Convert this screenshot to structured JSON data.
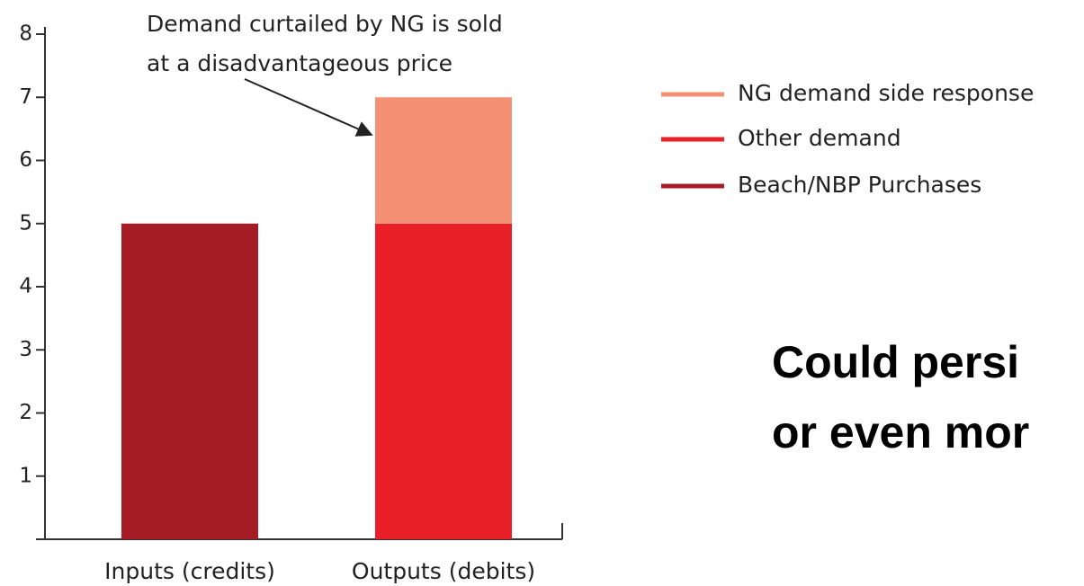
{
  "chart_data": {
    "type": "stacked_bar",
    "annotation": [
      "Demand curtailed by NG is sold",
      "at a disadvantageous price"
    ],
    "categories": [
      "Inputs (credits)",
      "Outputs (debits)"
    ],
    "series": [
      {
        "name": "Beach/NBP Purchases",
        "color": "#a51c24",
        "values": [
          5,
          null
        ]
      },
      {
        "name": "Other demand",
        "color": "#e92027",
        "values": [
          null,
          5
        ]
      },
      {
        "name": "NG demand side response",
        "color": "#f49074",
        "values": [
          null,
          2
        ]
      }
    ],
    "ylim": [
      0,
      8
    ],
    "yticks": [
      1,
      2,
      3,
      4,
      5,
      6,
      7,
      8
    ],
    "side_text": [
      "Could persi",
      "or even mor"
    ]
  }
}
